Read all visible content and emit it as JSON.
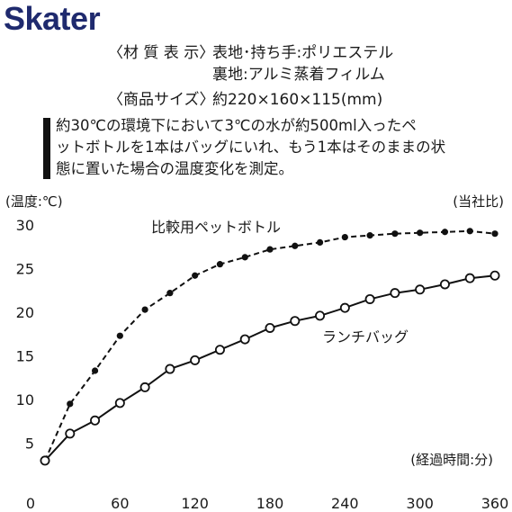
{
  "brand": "Skater",
  "specs": {
    "material_label": "〈材 質 表 示〉",
    "material_line1": "表地･持ち手:ポリエステル",
    "material_line2": "裏地:アルミ蒸着フィルム",
    "size_label": "〈商品サイズ〉",
    "size_value": "約220×160×115(mm)"
  },
  "note_lines": [
    "約30℃の環境下において3℃の水が約500ml入ったペ",
    "ットボトルを1本はバッグにいれ、もう1本はそのままの状",
    "態に置いた場合の温度変化を測定。"
  ],
  "chart_data": {
    "type": "line",
    "ylabel": "(温度:℃)",
    "xlabel": "(経過時間:分)",
    "corner_note": "(当社比)",
    "xlim": [
      0,
      360
    ],
    "ylim": [
      0,
      30
    ],
    "x_ticks": [
      0,
      60,
      120,
      180,
      240,
      300,
      360
    ],
    "y_ticks": [
      5,
      10,
      15,
      20,
      25,
      30
    ],
    "grid": false,
    "series": [
      {
        "name": "比較用ペットボトル",
        "style": "dashed",
        "marker": "filled",
        "x": [
          0,
          20,
          40,
          60,
          80,
          100,
          120,
          140,
          160,
          180,
          200,
          220,
          240,
          260,
          280,
          300,
          320,
          340,
          360
        ],
        "values": [
          3.0,
          9.5,
          13.3,
          17.3,
          20.3,
          22.2,
          24.2,
          25.5,
          26.3,
          27.2,
          27.6,
          28.0,
          28.6,
          28.8,
          29.0,
          29.1,
          29.2,
          29.3,
          29.0
        ]
      },
      {
        "name": "ランチバッグ",
        "style": "solid",
        "marker": "open",
        "x": [
          0,
          20,
          40,
          60,
          80,
          100,
          120,
          140,
          160,
          180,
          200,
          220,
          240,
          260,
          280,
          300,
          320,
          340,
          360
        ],
        "values": [
          3.0,
          6.1,
          7.6,
          9.6,
          11.4,
          13.5,
          14.5,
          15.7,
          16.9,
          18.2,
          19.0,
          19.6,
          20.5,
          21.5,
          22.2,
          22.6,
          23.2,
          23.9,
          24.2
        ]
      }
    ]
  }
}
